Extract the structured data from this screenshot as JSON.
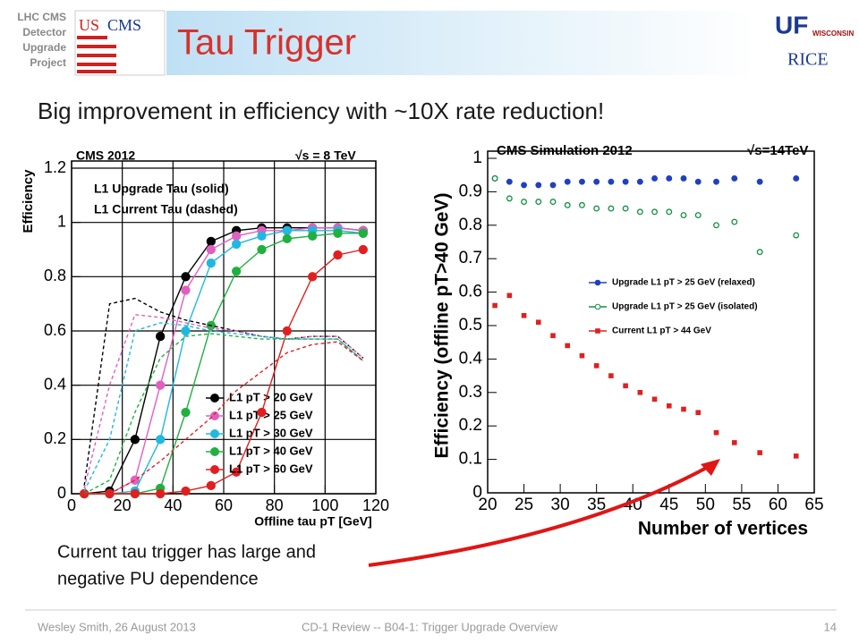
{
  "header": {
    "side_label": [
      "LHC CMS",
      "Detector",
      "Upgrade",
      "Project"
    ],
    "title": "Tau Trigger",
    "logos": [
      "US",
      "CMS",
      "UF",
      "WISCONSIN",
      "RICE"
    ]
  },
  "subtitle": "Big improvement in efficiency with ~10X rate reduction!",
  "chart_data": [
    {
      "type": "line",
      "annotations": [
        "CMS 2012",
        "√s = 8 TeV",
        "L1 Upgrade Tau (solid)",
        "L1 Current Tau (dashed)"
      ],
      "y_label": "Efficiency",
      "x_label": "Offline tau pT [GeV]",
      "x": [
        5,
        15,
        25,
        35,
        45,
        55,
        65,
        75,
        85,
        95,
        105,
        115
      ],
      "xlim": [
        0,
        120
      ],
      "xticks": [
        0,
        20,
        40,
        60,
        80,
        100,
        120
      ],
      "ylim": [
        0,
        1.2
      ],
      "yticks": [
        0,
        0.2,
        0.4,
        0.6,
        0.8,
        1,
        1.2
      ],
      "grid": true,
      "legend": "lower right",
      "series": [
        {
          "name": "L1 pT > 20 GeV",
          "color": "#000000",
          "values": [
            0,
            0.01,
            0.2,
            0.58,
            0.8,
            0.93,
            0.97,
            0.98,
            0.98,
            0.98,
            0.98,
            0.97
          ]
        },
        {
          "name": "L1 pT > 25 GeV",
          "color": "#e060c0",
          "values": [
            0,
            0,
            0.05,
            0.4,
            0.75,
            0.9,
            0.95,
            0.97,
            0.97,
            0.98,
            0.98,
            0.97
          ]
        },
        {
          "name": "L1 pT > 30 GeV",
          "color": "#20b8e0",
          "values": [
            0,
            0,
            0.01,
            0.2,
            0.6,
            0.85,
            0.92,
            0.95,
            0.97,
            0.97,
            0.97,
            0.96
          ]
        },
        {
          "name": "L1 pT > 40 GeV",
          "color": "#20b040",
          "values": [
            0,
            0,
            0,
            0.02,
            0.3,
            0.62,
            0.82,
            0.9,
            0.94,
            0.95,
            0.96,
            0.96
          ]
        },
        {
          "name": "L1 pT > 60 GeV",
          "color": "#e02020",
          "values": [
            0,
            0,
            0,
            0,
            0.01,
            0.03,
            0.08,
            0.3,
            0.6,
            0.8,
            0.88,
            0.9
          ]
        },
        {
          "color": "#000000",
          "dash": true,
          "values": [
            0.03,
            0.7,
            0.72,
            0.67,
            0.64,
            0.62,
            0.6,
            0.58,
            0.57,
            0.58,
            0.58,
            0.5
          ]
        },
        {
          "color": "#e060c0",
          "dash": true,
          "values": [
            0.02,
            0.4,
            0.66,
            0.65,
            0.63,
            0.61,
            0.6,
            0.58,
            0.57,
            0.58,
            0.58,
            0.5
          ]
        },
        {
          "color": "#20b8e0",
          "dash": true,
          "values": [
            0.01,
            0.2,
            0.6,
            0.63,
            0.62,
            0.6,
            0.59,
            0.58,
            0.57,
            0.57,
            0.57,
            0.49
          ]
        },
        {
          "color": "#20b040",
          "dash": true,
          "values": [
            0,
            0.05,
            0.3,
            0.5,
            0.58,
            0.59,
            0.58,
            0.57,
            0.57,
            0.57,
            0.57,
            0.49
          ]
        },
        {
          "color": "#e02020",
          "dash": true,
          "values": [
            0,
            0,
            0.05,
            0.12,
            0.2,
            0.28,
            0.38,
            0.45,
            0.52,
            0.55,
            0.56,
            0.49
          ]
        }
      ]
    },
    {
      "type": "scatter",
      "annotations": [
        "CMS Simulation 2012",
        "√s=14TeV"
      ],
      "y_label": "Efficiency (offline pT>40 GeV)",
      "x_label": "Number of vertices",
      "x": [
        21,
        23,
        25,
        27,
        29,
        31,
        33,
        35,
        37,
        39,
        41,
        43,
        45,
        47,
        49,
        51.5,
        54,
        57.5,
        62.5
      ],
      "xlim": [
        20,
        65
      ],
      "xticks": [
        20,
        25,
        30,
        35,
        40,
        45,
        50,
        55,
        60,
        65
      ],
      "ylim": [
        0,
        1
      ],
      "yticks": [
        0,
        0.1,
        0.2,
        0.3,
        0.4,
        0.5,
        0.6,
        0.7,
        0.8,
        0.9,
        1
      ],
      "grid": false,
      "legend": "center right",
      "series": [
        {
          "name": "Upgrade L1 pT > 25 GeV (relaxed)",
          "color": "#2040c0",
          "marker": "circle",
          "values": [
            0.94,
            0.93,
            0.92,
            0.92,
            0.92,
            0.93,
            0.93,
            0.93,
            0.93,
            0.93,
            0.93,
            0.94,
            0.94,
            0.94,
            0.93,
            0.93,
            0.94,
            0.93,
            0.94
          ]
        },
        {
          "name": "Upgrade L1 pT > 25 GeV (isolated)",
          "color": "#109040",
          "marker": "open-circle",
          "values": [
            0.94,
            0.88,
            0.87,
            0.87,
            0.87,
            0.86,
            0.86,
            0.85,
            0.85,
            0.85,
            0.84,
            0.84,
            0.84,
            0.83,
            0.83,
            0.8,
            0.81,
            0.72,
            0.77
          ]
        },
        {
          "name": "Current L1 pT > 44 GeV",
          "color": "#e02020",
          "marker": "square",
          "values": [
            0.56,
            0.59,
            0.53,
            0.51,
            0.47,
            0.44,
            0.41,
            0.38,
            0.35,
            0.32,
            0.3,
            0.28,
            0.26,
            0.25,
            0.24,
            0.18,
            0.15,
            0.12,
            0.11
          ]
        }
      ]
    }
  ],
  "note": [
    "Current tau trigger has large and",
    "negative PU dependence"
  ],
  "footer": {
    "left": "Wesley Smith, 26 August 2013",
    "center": "CD-1 Review -- B04-1: Trigger Upgrade Overview",
    "page": "14"
  }
}
